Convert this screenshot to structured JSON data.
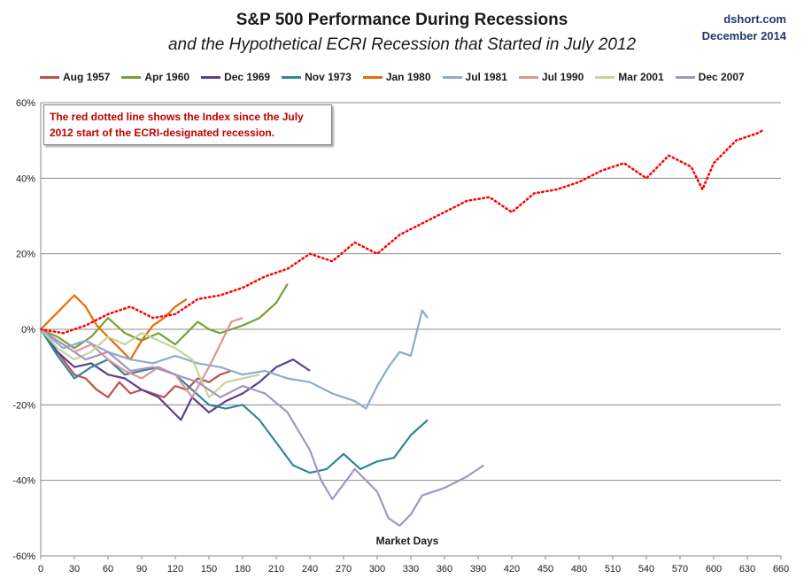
{
  "chart_data": {
    "type": "line",
    "title": "S&P 500 Performance During Recessions",
    "subtitle": "and the Hypothetical ECRI Recession that Started in July 2012",
    "source": "dshort.com",
    "date": "December 2014",
    "xlabel": "Market Days",
    "ylabel": "",
    "xlim": [
      0,
      660
    ],
    "ylim": [
      -60,
      60
    ],
    "xticks": [
      0,
      30,
      60,
      90,
      120,
      150,
      180,
      210,
      240,
      270,
      300,
      330,
      360,
      390,
      420,
      450,
      480,
      510,
      540,
      570,
      600,
      630,
      660
    ],
    "yticks": [
      -60,
      -40,
      -20,
      0,
      20,
      40,
      60
    ],
    "ytick_labels": [
      "-60%",
      "-40%",
      "-20%",
      "0%",
      "20%",
      "40%",
      "60%"
    ],
    "grid": "horizontal",
    "legend_position": "top",
    "annotation": "The red dotted line shows the Index since the July 2012 start of the ECRI-designated recession.",
    "series": [
      {
        "name": "Aug 1957",
        "color": "#c0504d",
        "style": "solid",
        "x": [
          0,
          10,
          20,
          30,
          40,
          50,
          60,
          70,
          80,
          90,
          100,
          110,
          120,
          130,
          140,
          150,
          160,
          170
        ],
        "values": [
          0,
          -4,
          -8,
          -12,
          -13,
          -16,
          -18,
          -14,
          -17,
          -16,
          -17,
          -18,
          -15,
          -16,
          -13,
          -14,
          -12,
          -11
        ]
      },
      {
        "name": "Apr 1960",
        "color": "#77a032",
        "style": "solid",
        "x": [
          0,
          15,
          30,
          45,
          60,
          75,
          90,
          105,
          120,
          130,
          140,
          150,
          160,
          170,
          180,
          195,
          210,
          220
        ],
        "values": [
          0,
          -2,
          -5,
          -2,
          3,
          -1,
          -3,
          -1,
          -4,
          -1,
          2,
          0,
          -1,
          0,
          1,
          3,
          7,
          12
        ]
      },
      {
        "name": "Dec 1969",
        "color": "#5b3f8f",
        "style": "solid",
        "x": [
          0,
          15,
          30,
          45,
          60,
          75,
          90,
          105,
          115,
          125,
          135,
          150,
          165,
          180,
          195,
          210,
          225,
          240
        ],
        "values": [
          0,
          -6,
          -10,
          -9,
          -12,
          -13,
          -16,
          -18,
          -21,
          -24,
          -18,
          -22,
          -19,
          -17,
          -14,
          -10,
          -8,
          -11
        ]
      },
      {
        "name": "Nov 1973",
        "color": "#31859c",
        "style": "solid",
        "x": [
          0,
          15,
          30,
          45,
          60,
          75,
          90,
          105,
          120,
          135,
          150,
          165,
          180,
          195,
          210,
          225,
          240,
          255,
          270,
          285,
          300,
          315,
          330,
          345
        ],
        "values": [
          0,
          -7,
          -13,
          -10,
          -8,
          -12,
          -11,
          -10,
          -12,
          -16,
          -20,
          -21,
          -20,
          -24,
          -30,
          -36,
          -38,
          -37,
          -33,
          -37,
          -35,
          -34,
          -28,
          -24
        ]
      },
      {
        "name": "Jan 1980",
        "color": "#e46c0a",
        "style": "solid",
        "x": [
          0,
          10,
          20,
          30,
          40,
          50,
          60,
          70,
          80,
          90,
          100,
          110,
          120,
          130
        ],
        "values": [
          0,
          3,
          6,
          9,
          6,
          1,
          -2,
          -5,
          -8,
          -3,
          1,
          3,
          6,
          8
        ]
      },
      {
        "name": "Jul 1981",
        "color": "#8ea9d3",
        "style": "solid",
        "x": [
          0,
          20,
          40,
          60,
          80,
          100,
          120,
          140,
          160,
          180,
          200,
          220,
          240,
          260,
          280,
          290,
          300,
          310,
          320,
          330,
          340,
          345
        ],
        "values": [
          0,
          -5,
          -3,
          -6,
          -8,
          -9,
          -7,
          -9,
          -10,
          -12,
          -11,
          -13,
          -14,
          -17,
          -19,
          -21,
          -15,
          -10,
          -6,
          -7,
          5,
          3
        ]
      },
      {
        "name": "Jul 1990",
        "color": "#da9694",
        "style": "solid",
        "x": [
          0,
          15,
          30,
          45,
          60,
          75,
          90,
          105,
          120,
          135,
          150,
          160,
          170,
          180
        ],
        "values": [
          0,
          -3,
          -6,
          -4,
          -8,
          -11,
          -13,
          -10,
          -12,
          -18,
          -10,
          -4,
          2,
          3
        ]
      },
      {
        "name": "Mar 2001",
        "color": "#c3d69b",
        "style": "solid",
        "x": [
          0,
          15,
          30,
          45,
          60,
          75,
          90,
          105,
          120,
          135,
          150,
          165,
          180,
          195
        ],
        "values": [
          0,
          -5,
          -8,
          -6,
          -2,
          -4,
          -1,
          -3,
          -5,
          -8,
          -18,
          -14,
          -13,
          -12
        ]
      },
      {
        "name": "Dec 2007",
        "color": "#a396c2",
        "style": "solid",
        "x": [
          0,
          20,
          40,
          60,
          80,
          100,
          120,
          140,
          160,
          180,
          200,
          220,
          240,
          250,
          260,
          280,
          300,
          310,
          320,
          330,
          340,
          360,
          380,
          395
        ],
        "values": [
          0,
          -4,
          -8,
          -6,
          -11,
          -10,
          -12,
          -14,
          -18,
          -15,
          -17,
          -22,
          -32,
          -40,
          -45,
          -37,
          -43,
          -50,
          -52,
          -49,
          -44,
          -42,
          -39,
          -36
        ]
      },
      {
        "name": "Jul 2012 (ECRI)",
        "color": "#ff0000",
        "style": "dotted",
        "x": [
          0,
          20,
          40,
          60,
          80,
          100,
          120,
          140,
          160,
          180,
          200,
          220,
          240,
          260,
          280,
          300,
          320,
          340,
          360,
          380,
          400,
          410,
          420,
          440,
          460,
          480,
          500,
          520,
          540,
          560,
          580,
          590,
          600,
          620,
          640,
          645
        ],
        "values": [
          0,
          -1,
          1,
          4,
          6,
          3,
          4,
          8,
          9,
          11,
          14,
          16,
          20,
          18,
          23,
          20,
          25,
          28,
          31,
          34,
          35,
          33,
          31,
          36,
          37,
          39,
          42,
          44,
          40,
          46,
          43,
          37,
          44,
          50,
          52,
          53
        ]
      }
    ]
  }
}
